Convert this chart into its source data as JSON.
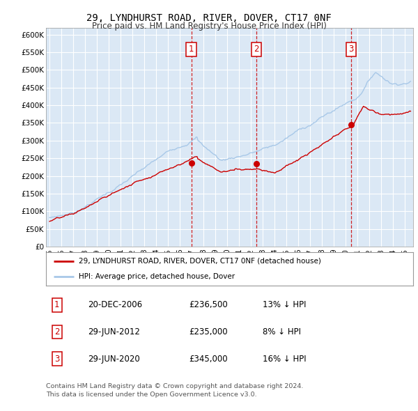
{
  "title": "29, LYNDHURST ROAD, RIVER, DOVER, CT17 0NF",
  "subtitle": "Price paid vs. HM Land Registry's House Price Index (HPI)",
  "ylim": [
    0,
    620000
  ],
  "yticks": [
    0,
    50000,
    100000,
    150000,
    200000,
    250000,
    300000,
    350000,
    400000,
    450000,
    500000,
    550000,
    600000
  ],
  "ytick_labels": [
    "£0",
    "£50K",
    "£100K",
    "£150K",
    "£200K",
    "£250K",
    "£300K",
    "£350K",
    "£400K",
    "£450K",
    "£500K",
    "£550K",
    "£600K"
  ],
  "hpi_color": "#a8c8e8",
  "price_color": "#cc0000",
  "background_color": "#ffffff",
  "plot_bg_color": "#dbe8f5",
  "grid_color": "#ffffff",
  "sale_dates": [
    2006.97,
    2012.49,
    2020.49
  ],
  "sale_prices": [
    236500,
    235000,
    345000
  ],
  "sale_labels": [
    "1",
    "2",
    "3"
  ],
  "legend_entries": [
    {
      "label": "29, LYNDHURST ROAD, RIVER, DOVER, CT17 0NF (detached house)",
      "color": "#cc0000"
    },
    {
      "label": "HPI: Average price, detached house, Dover",
      "color": "#a8c8e8"
    }
  ],
  "table_rows": [
    {
      "num": "1",
      "date": "20-DEC-2006",
      "price": "£236,500",
      "pct": "13% ↓ HPI"
    },
    {
      "num": "2",
      "date": "29-JUN-2012",
      "price": "£235,000",
      "pct": "8% ↓ HPI"
    },
    {
      "num": "3",
      "date": "29-JUN-2020",
      "price": "£345,000",
      "pct": "16% ↓ HPI"
    }
  ],
  "footnote1": "Contains HM Land Registry data © Crown copyright and database right 2024.",
  "footnote2": "This data is licensed under the Open Government Licence v3.0."
}
